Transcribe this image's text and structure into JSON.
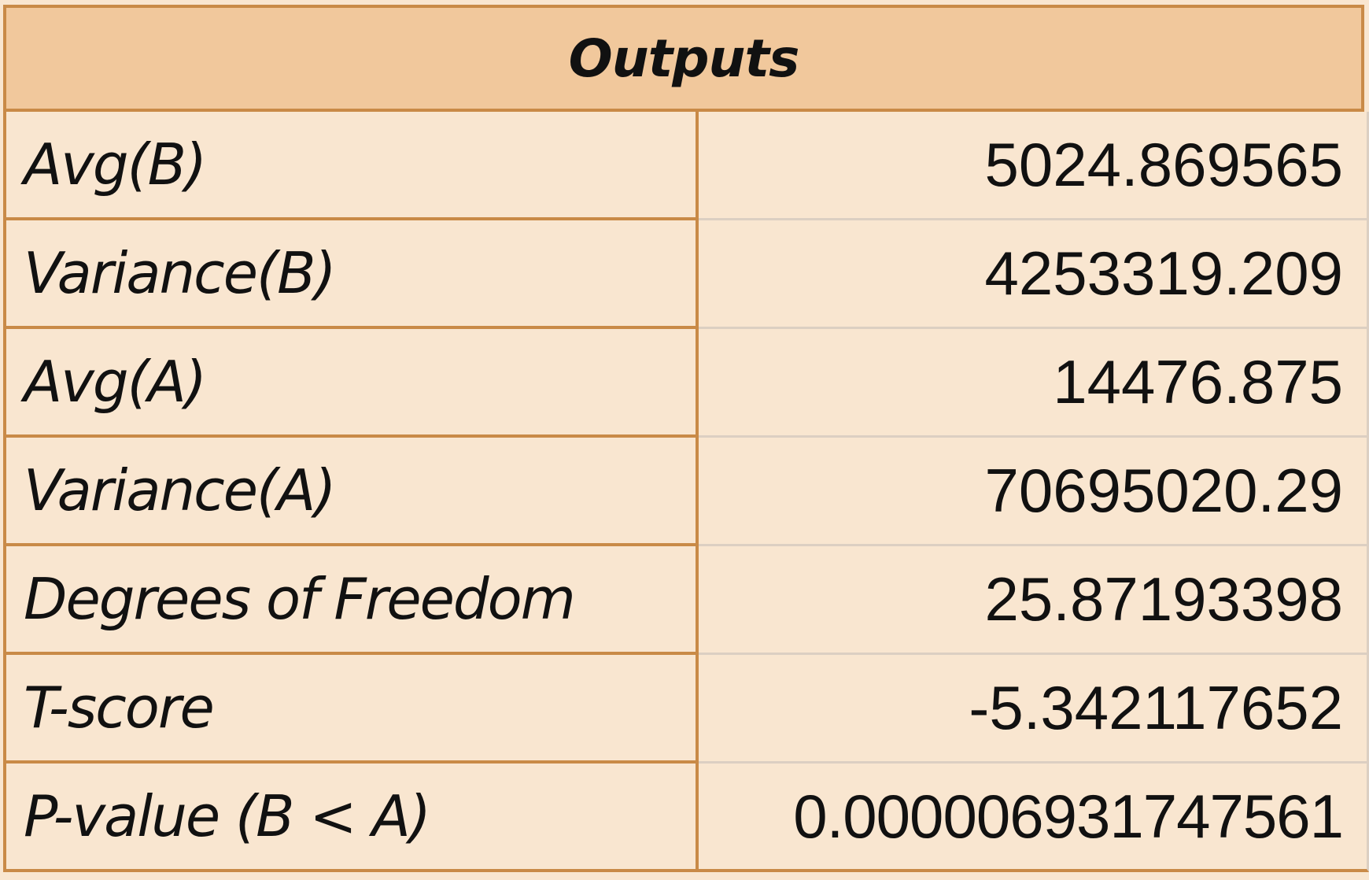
{
  "table": {
    "title": "Outputs",
    "rows": [
      {
        "label": "Avg(B)",
        "value": "5024.869565"
      },
      {
        "label": "Variance(B)",
        "value": "4253319.209"
      },
      {
        "label": "Avg(A)",
        "value": "14476.875"
      },
      {
        "label": "Variance(A)",
        "value": "70695020.29"
      },
      {
        "label": "Degrees of Freedom",
        "value": "25.87193398"
      },
      {
        "label": "T-score",
        "value": "-5.342117652"
      },
      {
        "label": "P-value (B < A)",
        "value": "0.000006931747561"
      }
    ]
  },
  "colors": {
    "header_fill": "#f1c89c",
    "cell_fill": "#f9e6d0",
    "border": "#c98a47",
    "gridline": "#dccfc2"
  }
}
